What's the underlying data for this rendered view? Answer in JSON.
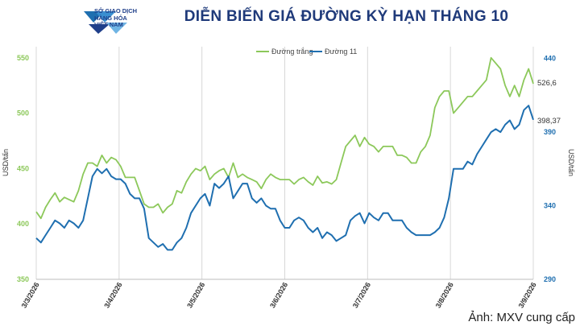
{
  "header": {
    "logo_lines": [
      "SỞ GIAO DỊCH",
      "HÀNG HÓA",
      "VIỆT NAM"
    ],
    "title": "DIỄN BIẾN GIÁ ĐƯỜNG KỲ HẠN THÁNG 10"
  },
  "credit": "Ảnh: MXV cung cấp",
  "colors": {
    "white_sugar": "#8cc85a",
    "sugar11": "#1f6fb0",
    "grid": "#d8d8d8"
  },
  "chart_data": {
    "type": "line",
    "x_tick_labels": [
      "3/3/2026",
      "3/4/2026",
      "3/5/2026",
      "3/6/2026",
      "3/7/2026",
      "3/8/2026",
      "3/9/2026"
    ],
    "ylabel_left": "USD/tấn",
    "ylabel_right": "USD/tấn",
    "ylim_left": [
      350,
      560
    ],
    "ylim_right": [
      290,
      448
    ],
    "yticks_left": [
      350,
      400,
      450,
      500,
      550
    ],
    "yticks_right": [
      290,
      340,
      390,
      440
    ],
    "grid": "vertical",
    "legend": "top-center",
    "series": [
      {
        "name": "Đường trắng",
        "axis": "left",
        "end_label": "526,6",
        "values": [
          411,
          405,
          415,
          422,
          428,
          420,
          424,
          422,
          420,
          430,
          445,
          455,
          455,
          452,
          462,
          455,
          460,
          458,
          452,
          442,
          442,
          442,
          430,
          418,
          415,
          415,
          418,
          410,
          415,
          418,
          430,
          428,
          438,
          445,
          450,
          448,
          452,
          440,
          445,
          448,
          450,
          442,
          455,
          442,
          445,
          442,
          440,
          438,
          432,
          440,
          445,
          442,
          440,
          440,
          440,
          436,
          440,
          442,
          438,
          435,
          443,
          437,
          438,
          436,
          440,
          455,
          470,
          475,
          480,
          470,
          478,
          472,
          470,
          465,
          470,
          470,
          470,
          462,
          462,
          460,
          455,
          455,
          465,
          470,
          480,
          505,
          515,
          520,
          520,
          500,
          505,
          510,
          515,
          515,
          520,
          525,
          530,
          550,
          545,
          540,
          525,
          515,
          525,
          515,
          530,
          540,
          526.6
        ]
      },
      {
        "name": "Đường 11",
        "axis": "right",
        "end_label": "398,37",
        "values": [
          318,
          315,
          320,
          325,
          330,
          328,
          325,
          330,
          328,
          325,
          330,
          345,
          360,
          365,
          362,
          365,
          360,
          358,
          358,
          355,
          348,
          345,
          345,
          338,
          318,
          315,
          312,
          314,
          310,
          310,
          315,
          318,
          325,
          335,
          340,
          345,
          348,
          340,
          355,
          352,
          355,
          360,
          345,
          350,
          355,
          355,
          345,
          342,
          345,
          340,
          338,
          338,
          330,
          325,
          325,
          330,
          332,
          330,
          325,
          322,
          325,
          318,
          322,
          320,
          316,
          318,
          320,
          330,
          333,
          335,
          328,
          335,
          332,
          330,
          335,
          335,
          330,
          330,
          330,
          325,
          322,
          320,
          320,
          320,
          320,
          322,
          325,
          332,
          345,
          365,
          365,
          365,
          370,
          368,
          375,
          380,
          385,
          390,
          392,
          390,
          395,
          398,
          392,
          395,
          405,
          408,
          398.37
        ]
      }
    ]
  }
}
